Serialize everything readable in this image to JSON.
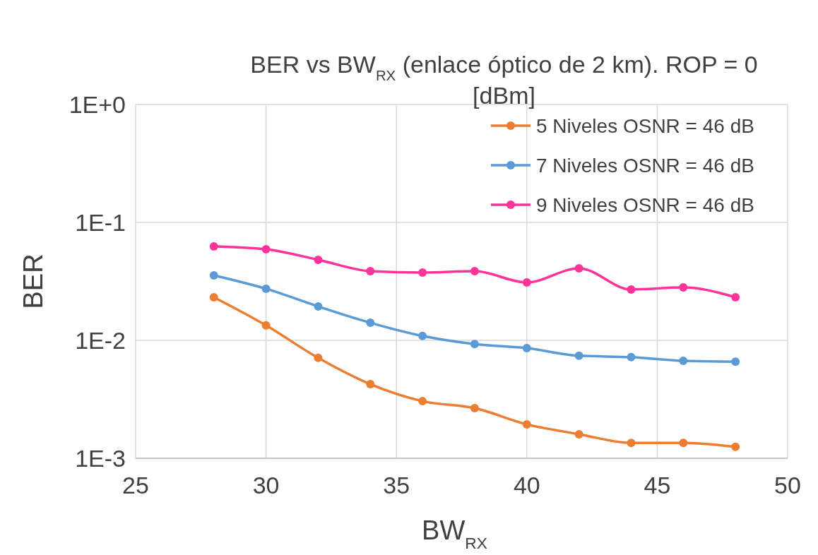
{
  "chart_data": {
    "type": "line",
    "title": "BER vs BW$_{RX}$ (enlace óptico de 2 km). ROP = 0 [dBm]",
    "xlabel": "BW$_{RX}$",
    "ylabel": "BER",
    "x": [
      28,
      30,
      32,
      34,
      36,
      38,
      40,
      42,
      44,
      46,
      48
    ],
    "series": [
      {
        "name": "5 Niveles OSNR = 46 dB",
        "color": "#ed7d31",
        "values": [
          0.0232,
          0.0134,
          0.0071,
          0.00425,
          0.00305,
          0.00266,
          0.00194,
          0.0016,
          0.00135,
          0.00135,
          0.00125
        ]
      },
      {
        "name": "7 Niveles OSNR = 46 dB",
        "color": "#5b9bd5",
        "values": [
          0.0356,
          0.0274,
          0.0194,
          0.0141,
          0.0109,
          0.0093,
          0.0086,
          0.0074,
          0.0072,
          0.0067,
          0.0066
        ]
      },
      {
        "name": "9 Niveles OSNR = 46 dB",
        "color": "#ff3399",
        "values": [
          0.0626,
          0.0592,
          0.0482,
          0.0386,
          0.0376,
          0.0386,
          0.031,
          0.0408,
          0.027,
          0.0281,
          0.0232
        ]
      }
    ],
    "xlim": [
      25,
      50
    ],
    "xticks": [
      25,
      30,
      35,
      40,
      45,
      50
    ],
    "ylim": [
      0.001,
      1
    ],
    "yticks": [
      {
        "value": 0.001,
        "label": "1E-3"
      },
      {
        "value": 0.01,
        "label": "1E-2"
      },
      {
        "value": 0.1,
        "label": "1E-1"
      },
      {
        "value": 1,
        "label": "1E+0"
      }
    ],
    "log": "y",
    "grid": true,
    "legend": "top right",
    "marker": "circle",
    "line_style": "solid"
  }
}
